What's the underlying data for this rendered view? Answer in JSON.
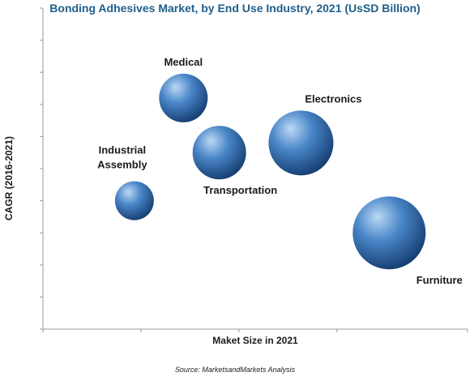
{
  "chart_data": {
    "type": "scatter",
    "title": "Bonding Adhesives Market, by End Use Industry, 2021 (UsSD Billion)",
    "xlabel": "Maket Size in 2021",
    "ylabel": "CAGR (2016-2021)",
    "source": "Source: MarketsandMarkets Analysis",
    "xlim": [
      0,
      13
    ],
    "ylim": [
      0,
      10
    ],
    "grid": false,
    "series": [
      {
        "points": [
          {
            "label": "Medical",
            "x": 4.3,
            "y": 7.2,
            "size": 3.0
          },
          {
            "label": "Transportation",
            "x": 5.4,
            "y": 5.5,
            "size": 3.3
          },
          {
            "label": "Industrial Assembly",
            "x": 2.8,
            "y": 4.0,
            "size": 2.4
          },
          {
            "label": "Electronics",
            "x": 7.9,
            "y": 5.8,
            "size": 4.0
          },
          {
            "label": "Furniture",
            "x": 10.6,
            "y": 3.0,
            "size": 4.5
          }
        ]
      }
    ],
    "colors": {
      "bubble_light": "#bcd9f5",
      "bubble_mid": "#4a86c8",
      "bubble_dark": "#163f73",
      "title": "#1f5f8b"
    }
  }
}
